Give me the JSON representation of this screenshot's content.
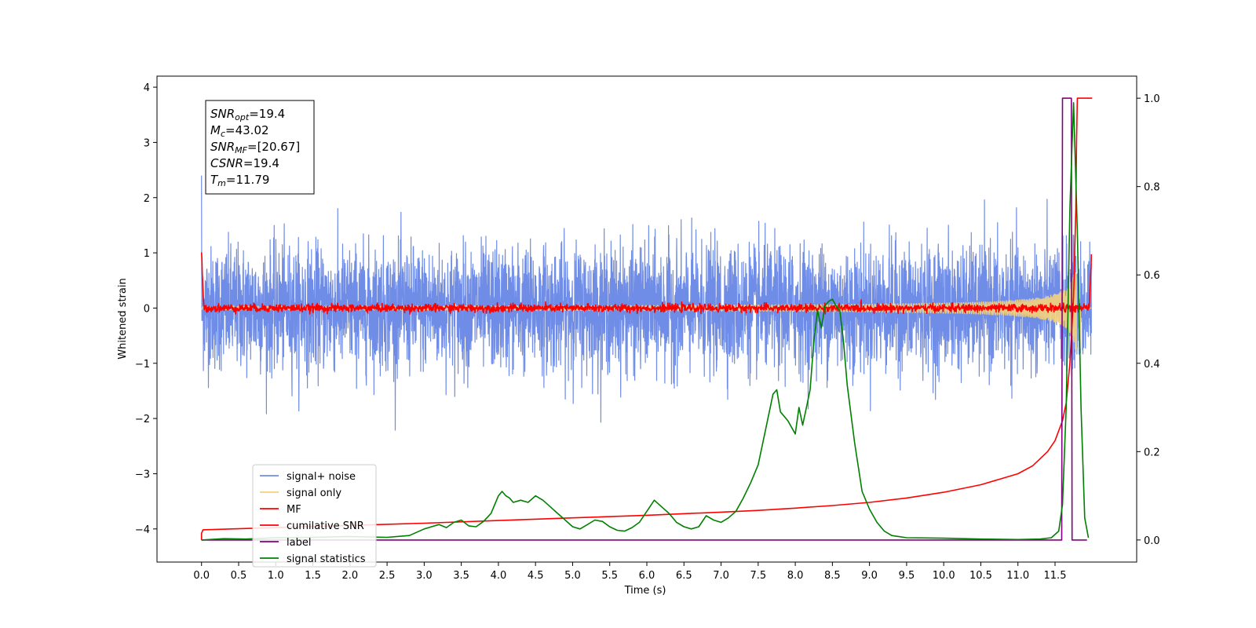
{
  "chart_data": {
    "type": "line",
    "xlabel": "Time (s)",
    "ylabel": "Whitened strain",
    "xlim": [
      -0.6,
      12.6
    ],
    "ylim": [
      -4.6,
      4.2
    ],
    "y2lim": [
      -0.05,
      1.05
    ],
    "xticks": [
      0.0,
      0.5,
      1.0,
      1.5,
      2.0,
      2.5,
      3.0,
      3.5,
      4.0,
      4.5,
      5.0,
      5.5,
      6.0,
      6.5,
      7.0,
      7.5,
      8.0,
      8.5,
      9.0,
      9.5,
      10.0,
      10.5,
      11.0,
      11.5
    ],
    "xtick_labels": [
      "0.0",
      "0.5",
      "1.0",
      "1.5",
      "2.0",
      "2.5",
      "3.0",
      "3.5",
      "4.0",
      "4.5",
      "5.0",
      "5.5",
      "6.0",
      "6.5",
      "7.0",
      "7.5",
      "8.0",
      "8.5",
      "9.0",
      "9.5",
      "10.0",
      "10.5",
      "11.0",
      "11.5"
    ],
    "yticks": [
      -4,
      -3,
      -2,
      -1,
      0,
      1,
      2,
      3,
      4
    ],
    "ytick_labels": [
      "−4",
      "−3",
      "−2",
      "−1",
      "0",
      "1",
      "2",
      "3",
      "4"
    ],
    "y2ticks": [
      0.0,
      0.2,
      0.4,
      0.6,
      0.8,
      1.0
    ],
    "y2tick_labels": [
      "0.0",
      "0.2",
      "0.4",
      "0.6",
      "0.8",
      "1.0"
    ],
    "grid": false,
    "legend_position": "lower-left",
    "annotation": {
      "lines": [
        {
          "base": "SNR",
          "sub": "opt",
          "value": "=19.4"
        },
        {
          "base": "M",
          "sub": "c",
          "value": "=43.02"
        },
        {
          "base": "SNR",
          "sub": "MF",
          "value": "=[20.67]"
        },
        {
          "base": "CSNR",
          "sub": "",
          "value": "=19.4"
        },
        {
          "base": "T",
          "sub": "m",
          "value": "=11.79"
        }
      ]
    },
    "series": [
      {
        "name": "signal+ noise",
        "axis": "left",
        "color": "#6f8ce6",
        "kind": "noise",
        "x_range": [
          0.0,
          11.99
        ],
        "noise_sigma": 0.55
      },
      {
        "name": "signal only",
        "axis": "left",
        "color": "#f5d17a",
        "kind": "chirp",
        "x_range": [
          0.0,
          11.99
        ],
        "peak_time": 11.79,
        "peak_amplitude": 0.9
      },
      {
        "name": "MF",
        "axis": "left",
        "color": "#ff0000",
        "kind": "mf",
        "x_range": [
          0.0,
          11.99
        ],
        "start_value": 1.0,
        "end_value": 0.95
      },
      {
        "name": "cumilative SNR",
        "axis": "right",
        "color": "#ff0000",
        "kind": "line",
        "x": [
          0.0,
          0.0,
          0.02,
          1.0,
          2.0,
          3.0,
          4.0,
          5.0,
          6.0,
          7.0,
          7.5,
          8.0,
          8.5,
          9.0,
          9.5,
          10.0,
          10.5,
          11.0,
          11.2,
          11.4,
          11.5,
          11.6,
          11.65,
          11.7,
          11.75,
          11.78,
          11.79,
          11.8,
          11.85,
          12.0
        ],
        "values": [
          0.0,
          0.015,
          0.023,
          0.028,
          0.033,
          0.038,
          0.044,
          0.05,
          0.056,
          0.063,
          0.067,
          0.072,
          0.078,
          0.085,
          0.095,
          0.108,
          0.125,
          0.15,
          0.168,
          0.2,
          0.225,
          0.27,
          0.31,
          0.4,
          0.55,
          0.75,
          0.9,
          1.0,
          1.0,
          1.0
        ]
      },
      {
        "name": "label",
        "axis": "right",
        "color": "#800080",
        "kind": "line",
        "x": [
          0.0,
          11.59,
          11.6,
          11.72,
          11.73,
          11.93
        ],
        "values": [
          0.0,
          0.0,
          1.0,
          1.0,
          0.0,
          0.0
        ]
      },
      {
        "name": "signal statistics",
        "axis": "right",
        "color": "#008000",
        "kind": "line",
        "x": [
          0.0,
          0.3,
          0.6,
          1.0,
          1.5,
          2.0,
          2.5,
          2.8,
          3.0,
          3.1,
          3.2,
          3.3,
          3.4,
          3.5,
          3.6,
          3.7,
          3.8,
          3.9,
          4.0,
          4.05,
          4.1,
          4.15,
          4.2,
          4.3,
          4.4,
          4.5,
          4.6,
          4.7,
          4.8,
          4.9,
          5.0,
          5.1,
          5.2,
          5.3,
          5.4,
          5.5,
          5.6,
          5.7,
          5.8,
          5.9,
          6.0,
          6.1,
          6.2,
          6.3,
          6.4,
          6.5,
          6.6,
          6.7,
          6.8,
          6.9,
          7.0,
          7.1,
          7.2,
          7.3,
          7.4,
          7.5,
          7.6,
          7.7,
          7.75,
          7.8,
          7.9,
          8.0,
          8.05,
          8.1,
          8.15,
          8.2,
          8.25,
          8.3,
          8.35,
          8.4,
          8.45,
          8.5,
          8.55,
          8.6,
          8.65,
          8.7,
          8.8,
          8.9,
          9.0,
          9.1,
          9.2,
          9.3,
          9.5,
          10.0,
          10.5,
          11.0,
          11.3,
          11.45,
          11.55,
          11.6,
          11.65,
          11.7,
          11.75,
          11.8,
          11.85,
          11.9,
          11.95
        ],
        "values": [
          0.0,
          0.003,
          0.002,
          0.005,
          0.006,
          0.008,
          0.006,
          0.01,
          0.025,
          0.03,
          0.035,
          0.028,
          0.04,
          0.045,
          0.032,
          0.03,
          0.042,
          0.06,
          0.1,
          0.11,
          0.1,
          0.095,
          0.085,
          0.09,
          0.085,
          0.1,
          0.09,
          0.075,
          0.06,
          0.045,
          0.03,
          0.025,
          0.035,
          0.045,
          0.042,
          0.03,
          0.022,
          0.02,
          0.028,
          0.04,
          0.065,
          0.09,
          0.075,
          0.06,
          0.04,
          0.03,
          0.025,
          0.03,
          0.055,
          0.045,
          0.04,
          0.05,
          0.065,
          0.095,
          0.13,
          0.17,
          0.25,
          0.33,
          0.34,
          0.29,
          0.27,
          0.24,
          0.3,
          0.26,
          0.3,
          0.34,
          0.45,
          0.52,
          0.48,
          0.53,
          0.54,
          0.545,
          0.53,
          0.52,
          0.45,
          0.35,
          0.22,
          0.11,
          0.07,
          0.04,
          0.02,
          0.01,
          0.005,
          0.004,
          0.002,
          0.001,
          0.002,
          0.005,
          0.02,
          0.08,
          0.3,
          0.75,
          0.99,
          0.7,
          0.3,
          0.05,
          0.005
        ]
      }
    ]
  }
}
